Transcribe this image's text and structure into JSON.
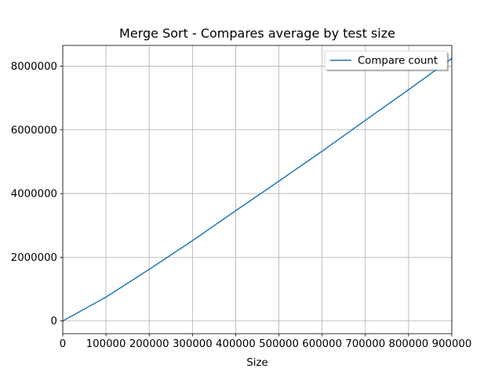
{
  "chart_data": {
    "type": "line",
    "title": "Merge Sort - Compares average by test size",
    "xlabel": "Size",
    "ylabel": "",
    "xlim": [
      0,
      900000
    ],
    "ylim": [
      -400000,
      8650000
    ],
    "xticks": [
      0,
      100000,
      200000,
      300000,
      400000,
      500000,
      600000,
      700000,
      800000,
      900000
    ],
    "xtick_labels": [
      "0",
      "100000",
      "200000",
      "300000",
      "400000",
      "500000",
      "600000",
      "700000",
      "800000",
      "900000"
    ],
    "yticks": [
      0,
      2000000,
      4000000,
      6000000,
      8000000
    ],
    "ytick_labels": [
      "0",
      "2000000",
      "4000000",
      "6000000",
      "8000000"
    ],
    "grid": true,
    "legend_position": "top-right",
    "series": [
      {
        "name": "Compare count",
        "color": "#1f77b4",
        "x": [
          0,
          100000,
          200000,
          300000,
          400000,
          500000,
          600000,
          700000,
          800000,
          900000
        ],
        "y": [
          0,
          750000,
          1620000,
          2520000,
          3460000,
          4390000,
          5330000,
          6300000,
          7260000,
          8240000
        ]
      }
    ]
  }
}
